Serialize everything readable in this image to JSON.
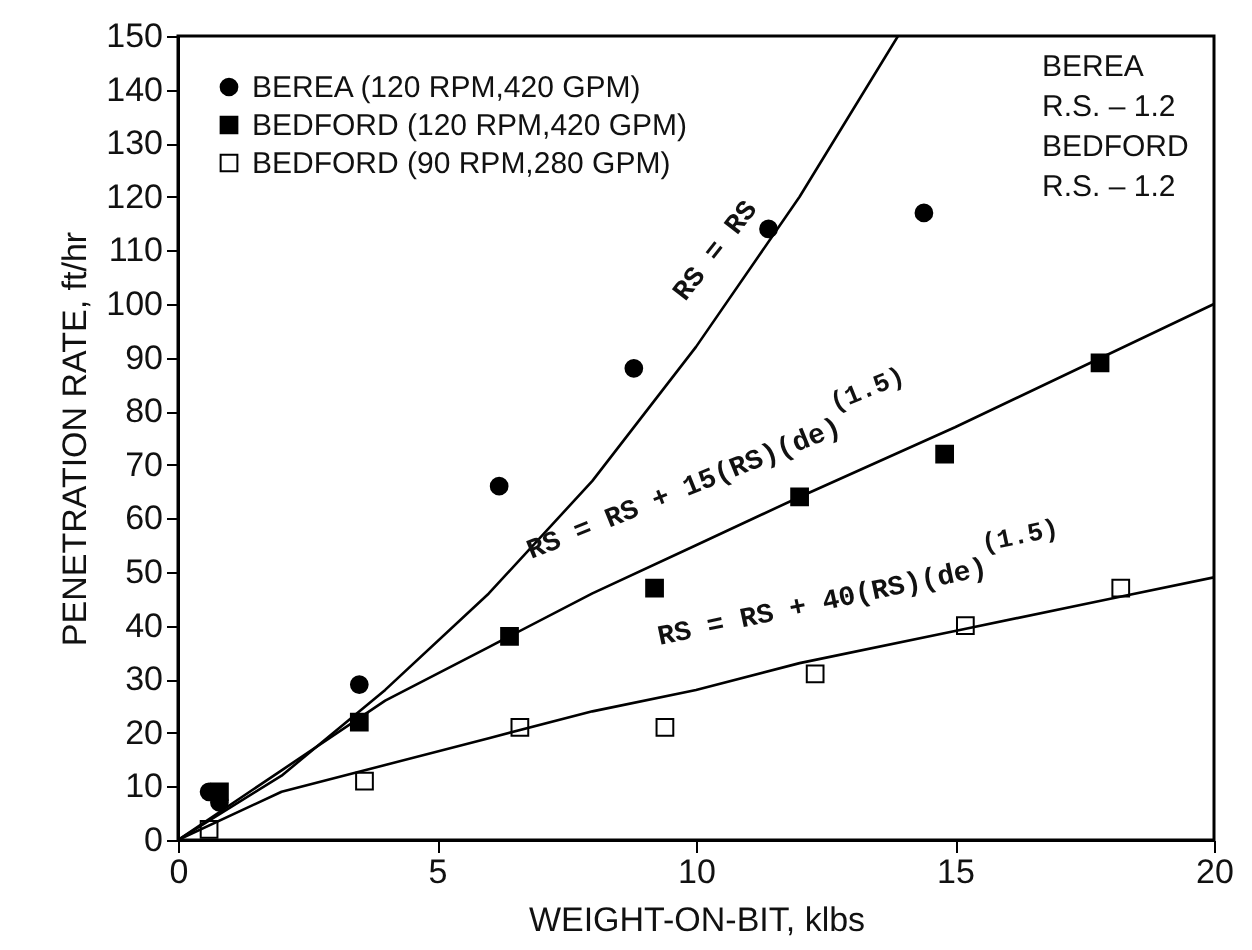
{
  "chart_data": {
    "type": "scatter",
    "xlabel": "WEIGHT-ON-BIT, klbs",
    "ylabel": "PENETRATION RATE, ft/hr",
    "xlim": [
      0,
      20
    ],
    "xticks": [
      0,
      5,
      10,
      15,
      20
    ],
    "ylim": [
      0,
      150
    ],
    "yticks": [
      0,
      10,
      20,
      30,
      40,
      50,
      60,
      70,
      80,
      90,
      100,
      110,
      120,
      130,
      140,
      150
    ],
    "grid": false,
    "legend": "top left",
    "series": [
      {
        "name": "BEREA (120 RPM,420 GPM)",
        "marker": "circle",
        "color": "#000000",
        "x": [
          0.6,
          0.8,
          3.5,
          6.2,
          8.8,
          11.4,
          14.4
        ],
        "values": [
          9,
          7,
          29,
          66,
          88,
          114,
          117
        ]
      },
      {
        "name": "BEDFORD (120 RPM,420 GPM)",
        "marker": "square",
        "color": "#000000",
        "x": [
          0.8,
          3.5,
          6.4,
          9.2,
          12.0,
          14.8,
          17.8
        ],
        "values": [
          9,
          22,
          38,
          47,
          64,
          72,
          89
        ]
      },
      {
        "name": "BEDFORD (90 RPM,280 GPM)",
        "marker": "square",
        "color": "#ffffff",
        "x": [
          0.6,
          3.6,
          6.6,
          9.4,
          12.3,
          15.2,
          18.2
        ],
        "values": [
          2,
          11,
          21,
          21,
          31,
          40,
          47
        ]
      },
      {
        "type": "line",
        "marker": "none",
        "color": "#000000",
        "x": [
          0,
          2,
          4,
          6,
          8,
          10,
          12,
          13.9
        ],
        "values": [
          0,
          12,
          28,
          46,
          67,
          92,
          120,
          150
        ]
      },
      {
        "type": "line",
        "marker": "none",
        "color": "#000000",
        "x": [
          0,
          2,
          4,
          6,
          8,
          10,
          12,
          15,
          20
        ],
        "values": [
          0,
          13,
          26,
          36,
          46,
          55,
          64,
          77,
          100
        ]
      },
      {
        "type": "line",
        "marker": "none",
        "color": "#000000",
        "x": [
          0,
          2,
          4,
          6,
          8,
          10,
          12,
          15,
          18,
          20
        ],
        "values": [
          0,
          9,
          14,
          19,
          24,
          28,
          33,
          39,
          45,
          49
        ]
      }
    ],
    "annotations": [
      "RS = RS",
      "RS = RS + 15(RS)(de)$^{(1.5)}$",
      "RS = RS + 40(RS)(de)$^{(1.5)}$",
      "BEREA",
      "R.S. – 1.2",
      "BEDFORD",
      "R.S. – 1.2"
    ]
  }
}
